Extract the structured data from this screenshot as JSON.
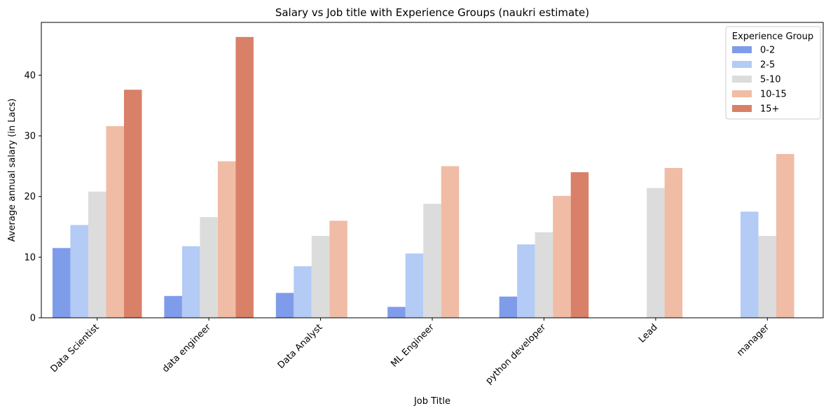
{
  "chart_data": {
    "type": "bar",
    "title": "Salary vs Job title with Experience Groups (naukri estimate)",
    "xlabel": "Job Title",
    "ylabel": "Average annual salary (in Lacs)",
    "ylim": [
      0,
      48.7
    ],
    "yticks": [
      0,
      10,
      20,
      30,
      40
    ],
    "grid": false,
    "legend": {
      "title": "Experience Group",
      "placement": "top-right"
    },
    "categories": [
      "Data Scientist",
      "data engineer",
      "Data Analyst",
      "ML Engineer",
      "python developer",
      "Lead",
      "manager"
    ],
    "series": [
      {
        "name": "0-2",
        "color": "#7f9cea",
        "values": [
          11.5,
          3.6,
          4.1,
          1.8,
          3.5,
          null,
          null
        ]
      },
      {
        "name": "2-5",
        "color": "#b3cbf5",
        "values": [
          15.3,
          11.8,
          8.5,
          10.6,
          12.1,
          null,
          17.5
        ]
      },
      {
        "name": "5-10",
        "color": "#dcdcdc",
        "values": [
          20.8,
          16.6,
          13.5,
          18.8,
          14.1,
          21.4,
          13.5
        ]
      },
      {
        "name": "10-15",
        "color": "#f0bca5",
        "values": [
          31.6,
          25.8,
          16.0,
          25.0,
          20.1,
          24.7,
          27.0
        ]
      },
      {
        "name": "15+",
        "color": "#d98069",
        "values": [
          37.6,
          46.3,
          null,
          null,
          24.0,
          null,
          null
        ]
      }
    ]
  }
}
